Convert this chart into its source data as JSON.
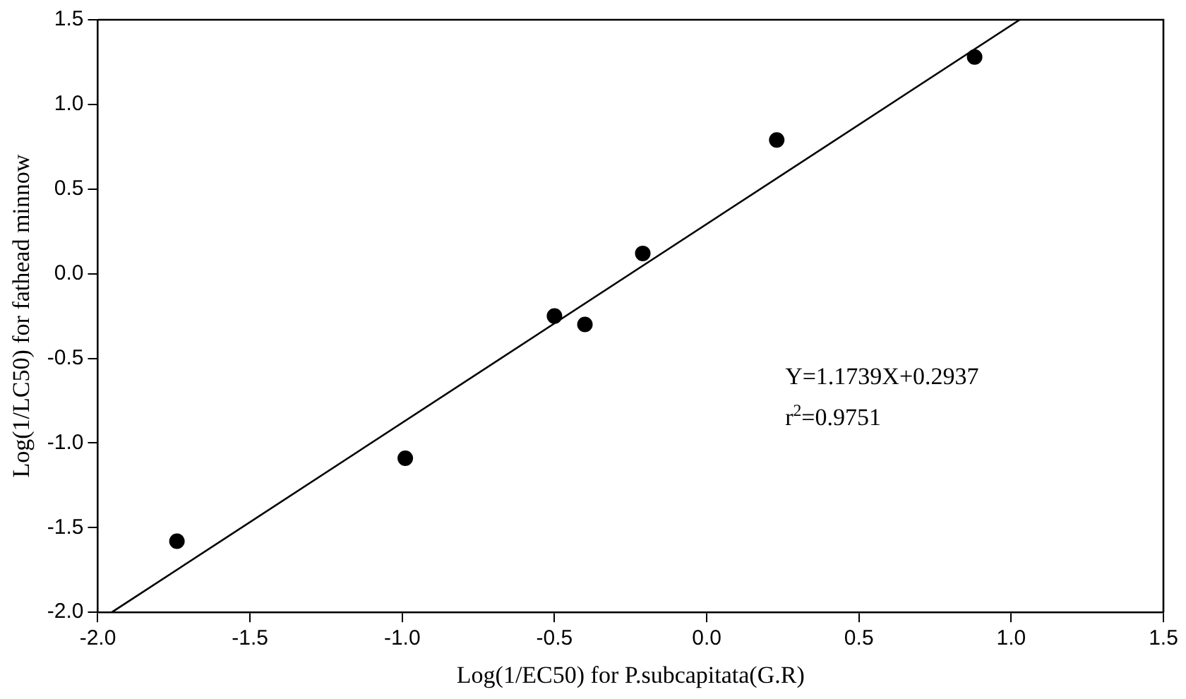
{
  "chart_data": {
    "type": "scatter",
    "xlabel": "Log(1/EC50) for P.subcapitata(G.R)",
    "ylabel": "Log(1/LC50) for fathead minnow",
    "xlim": [
      -2.0,
      1.5
    ],
    "xticks": [
      {
        "value": -2,
        "label": "-2.0"
      },
      {
        "value": -1.5,
        "label": "-1.5"
      },
      {
        "value": -1,
        "label": "-1.0"
      },
      {
        "value": -0.5,
        "label": "-0.5"
      },
      {
        "value": 0,
        "label": "0.0"
      },
      {
        "value": 0.5,
        "label": "0.5"
      },
      {
        "value": 1,
        "label": "1.0"
      },
      {
        "value": 1.5,
        "label": "1.5"
      }
    ],
    "ylim": [
      -2.0,
      1.5
    ],
    "yticks": [
      {
        "value": -2,
        "label": "-2.0"
      },
      {
        "value": -1.5,
        "label": "-1.5"
      },
      {
        "value": -1,
        "label": "-1.0"
      },
      {
        "value": -0.5,
        "label": "-0.5"
      },
      {
        "value": 0,
        "label": "0.0"
      },
      {
        "value": 0.5,
        "label": "0.5"
      },
      {
        "value": 1,
        "label": "1.0"
      },
      {
        "value": 1.5,
        "label": "1.5"
      }
    ],
    "grid": false,
    "legend": false,
    "marker": "circle",
    "series": [
      {
        "color": "#000000",
        "x": [
          -1.74,
          -0.99,
          -0.5,
          -0.4,
          -0.21,
          0.23,
          0.88
        ],
        "values": [
          -1.58,
          -1.09,
          -0.25,
          -0.3,
          0.12,
          0.79,
          1.28
        ]
      },
      {
        "type": "line",
        "color": "#000000",
        "marker": "none",
        "x": [
          -1.954,
          1.028
        ],
        "values": [
          -2.0,
          1.5
        ]
      }
    ],
    "annotations": [
      "Y=1.1739X+0.2937",
      "r$^{2}$=0.9751"
    ]
  }
}
